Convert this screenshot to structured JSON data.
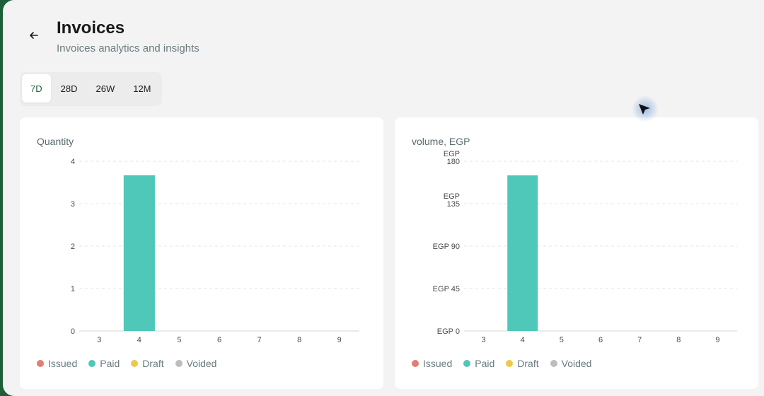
{
  "header": {
    "title": "Invoices",
    "subtitle": "Invoices analytics and insights"
  },
  "tabs": [
    {
      "label": "7D",
      "active": true
    },
    {
      "label": "28D",
      "active": false
    },
    {
      "label": "26W",
      "active": false
    },
    {
      "label": "12M",
      "active": false
    }
  ],
  "colors": {
    "accent": "#1e5f3a",
    "issued": "#e57b73",
    "paid": "#4fc7b9",
    "draft": "#ecc94b",
    "voided": "#bdbdbd"
  },
  "legend": [
    {
      "label": "Issued",
      "color": "#e57b73"
    },
    {
      "label": "Paid",
      "color": "#4fc7b9"
    },
    {
      "label": "Draft",
      "color": "#ecc94b"
    },
    {
      "label": "Voided",
      "color": "#bdbdbd"
    }
  ],
  "chart_data": [
    {
      "type": "bar",
      "title": "Quantity",
      "categories": [
        "3",
        "4",
        "5",
        "6",
        "7",
        "8",
        "9"
      ],
      "series": [
        {
          "name": "Issued",
          "values": [
            0,
            0,
            0,
            0,
            0,
            0,
            0
          ]
        },
        {
          "name": "Paid",
          "values": [
            0,
            3.67,
            0,
            0,
            0,
            0,
            0
          ]
        },
        {
          "name": "Draft",
          "values": [
            0,
            0,
            0,
            0,
            0,
            0,
            0
          ]
        },
        {
          "name": "Voided",
          "values": [
            0,
            0,
            0,
            0,
            0,
            0,
            0
          ]
        }
      ],
      "ylim": [
        0,
        4
      ],
      "yticks": [
        0,
        1,
        2,
        3,
        4
      ],
      "ytick_labels": [
        [
          "0"
        ],
        [
          "1"
        ],
        [
          "2"
        ],
        [
          "3"
        ],
        [
          "4"
        ]
      ],
      "grid": true
    },
    {
      "type": "bar",
      "title": "volume, EGP",
      "categories": [
        "3",
        "4",
        "5",
        "6",
        "7",
        "8",
        "9"
      ],
      "series": [
        {
          "name": "Issued",
          "values": [
            0,
            0,
            0,
            0,
            0,
            0,
            0
          ]
        },
        {
          "name": "Paid",
          "values": [
            0,
            165,
            0,
            0,
            0,
            0,
            0
          ]
        },
        {
          "name": "Draft",
          "values": [
            0,
            0,
            0,
            0,
            0,
            0,
            0
          ]
        },
        {
          "name": "Voided",
          "values": [
            0,
            0,
            0,
            0,
            0,
            0,
            0
          ]
        }
      ],
      "ylim": [
        0,
        180
      ],
      "yticks": [
        0,
        45,
        90,
        135,
        180
      ],
      "ytick_labels": [
        [
          "EGP 0"
        ],
        [
          "EGP 45"
        ],
        [
          "EGP 90"
        ],
        [
          "EGP",
          "135"
        ],
        [
          "EGP",
          "180"
        ]
      ],
      "grid": true
    }
  ]
}
